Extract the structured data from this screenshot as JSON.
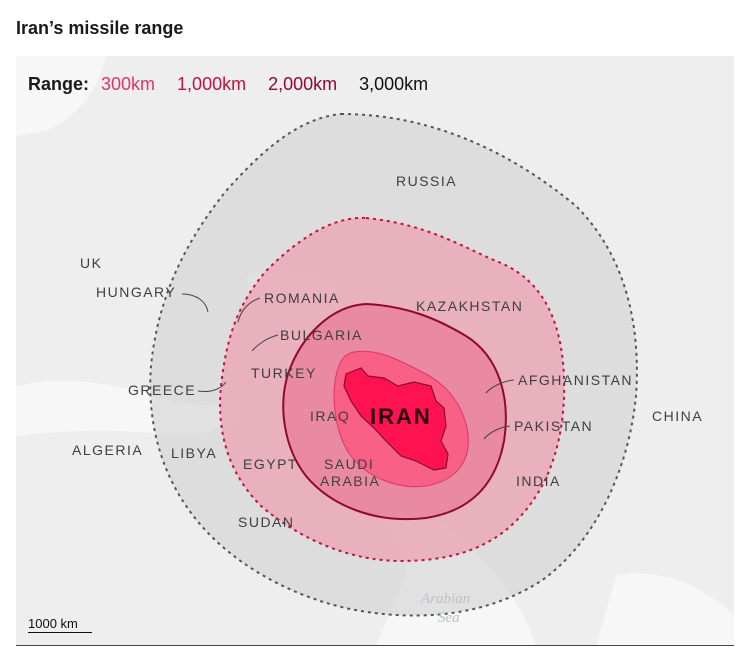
{
  "title": "Iran’s missile range",
  "legend": {
    "label": "Range:",
    "items": [
      {
        "text": "300km",
        "color": "#e0336e"
      },
      {
        "text": "1,000km",
        "color": "#c2123f"
      },
      {
        "text": "2,000km",
        "color": "#8e0a2e"
      },
      {
        "text": "3,000km",
        "color": "#111111"
      }
    ]
  },
  "map": {
    "center_label": "IRAN",
    "labels": {
      "russia": "RUSSIA",
      "uk": "UK",
      "hungary": "HUNGARY",
      "romania": "ROMANIA",
      "bulgaria": "BULGARIA",
      "kazakhstan": "KAZAKHSTAN",
      "turkey": "TURKEY",
      "greece": "GREECE",
      "afghanistan": "AFGHANISTAN",
      "iraq": "IRAQ",
      "pakistan": "PAKISTAN",
      "china": "CHINA",
      "algeria": "ALGERIA",
      "libya": "LIBYA",
      "egypt": "EGYPT",
      "saudi": "SAUDI",
      "arabia": "ARABIA",
      "india": "INDIA",
      "sudan": "SUDAN"
    },
    "sea": {
      "line1": "Arabian",
      "line2": "Sea"
    }
  },
  "scale_label": "1000 km"
}
